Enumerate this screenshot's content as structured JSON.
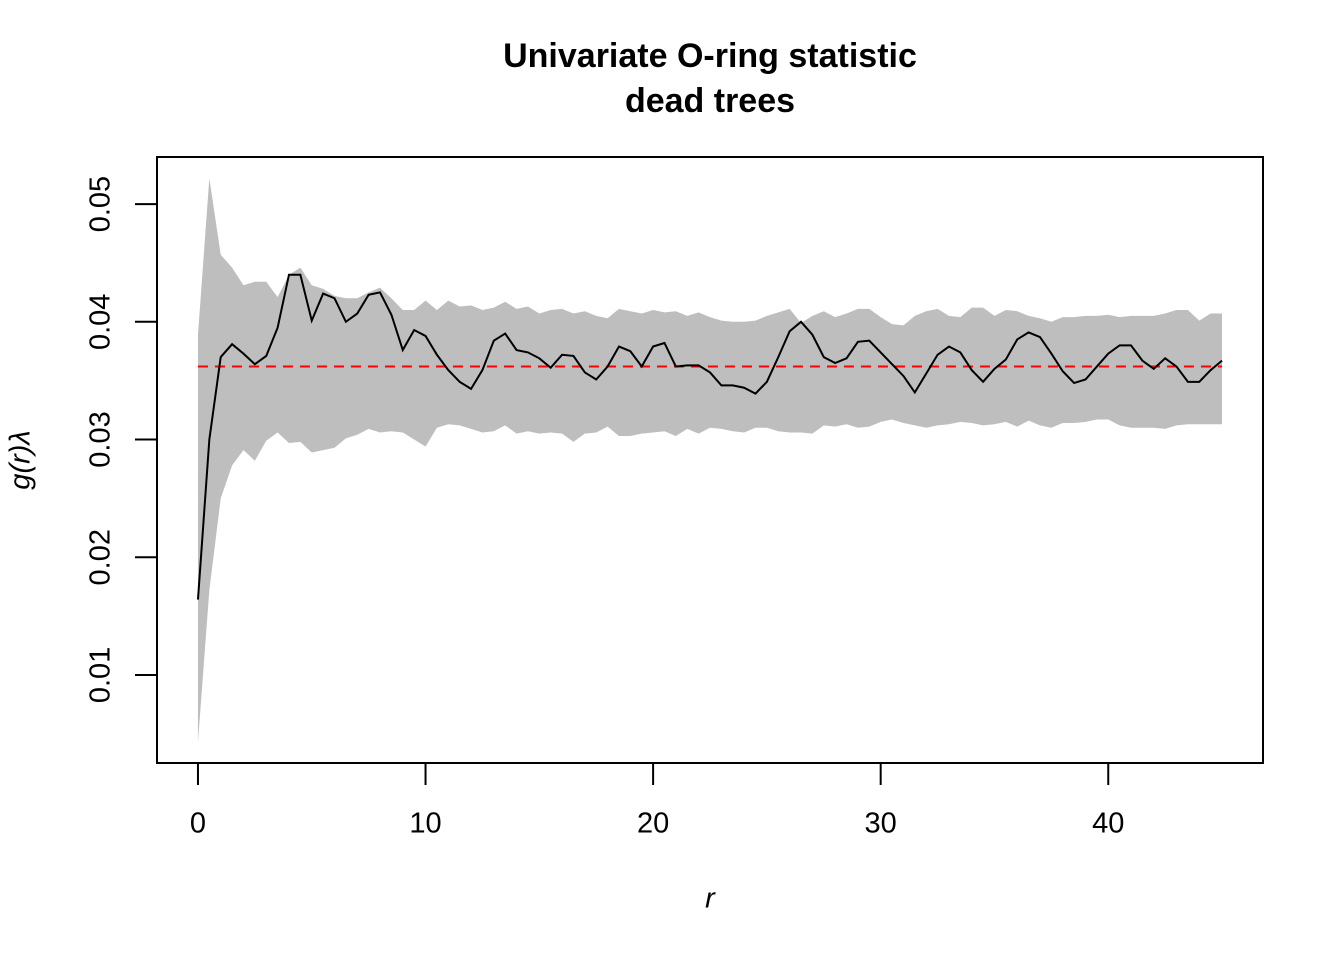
{
  "chart_data": {
    "type": "line",
    "title": "Univariate O-ring statistic",
    "subtitle": "dead trees",
    "x_label": "r",
    "y_label": "g(r)λ",
    "xlim": [
      -1.8,
      46.8
    ],
    "ylim": [
      0.00252,
      0.054
    ],
    "xticks": [
      0,
      10,
      20,
      30,
      40
    ],
    "yticks": [
      0.01,
      0.02,
      0.03,
      0.04,
      0.05
    ],
    "x": [
      0,
      0.5,
      1,
      1.5,
      2,
      2.5,
      3,
      3.5,
      4,
      4.5,
      5,
      5.5,
      6,
      6.5,
      7,
      7.5,
      8,
      8.5,
      9,
      9.5,
      10,
      10.5,
      11,
      11.5,
      12,
      12.5,
      13,
      13.5,
      14,
      14.5,
      15,
      15.5,
      16,
      16.5,
      17,
      17.5,
      18,
      18.5,
      19,
      19.5,
      20,
      20.5,
      21,
      21.5,
      22,
      22.5,
      23,
      23.5,
      24,
      24.5,
      25,
      25.5,
      26,
      26.5,
      27,
      27.5,
      28,
      28.5,
      29,
      29.5,
      30,
      30.5,
      31,
      31.5,
      32,
      32.5,
      33,
      33.5,
      34,
      34.5,
      35,
      35.5,
      36,
      36.5,
      37,
      37.5,
      38,
      38.5,
      39,
      39.5,
      40,
      40.5,
      41,
      41.5,
      42,
      42.5,
      43,
      43.5,
      44,
      44.5,
      45
    ],
    "band": {
      "color": "#bebebe",
      "upper": [
        0.0389,
        0.0522,
        0.0457,
        0.0446,
        0.0431,
        0.0434,
        0.0434,
        0.0421,
        0.044,
        0.0446,
        0.0431,
        0.0428,
        0.0422,
        0.042,
        0.042,
        0.0425,
        0.0429,
        0.042,
        0.041,
        0.041,
        0.0418,
        0.041,
        0.0418,
        0.0413,
        0.0414,
        0.041,
        0.0412,
        0.0417,
        0.0411,
        0.0413,
        0.0407,
        0.041,
        0.0411,
        0.0407,
        0.0409,
        0.0405,
        0.0403,
        0.0411,
        0.0409,
        0.0407,
        0.041,
        0.0408,
        0.0409,
        0.0405,
        0.0408,
        0.0404,
        0.0401,
        0.04,
        0.04,
        0.0401,
        0.0405,
        0.0408,
        0.0411,
        0.0399,
        0.0405,
        0.0409,
        0.0404,
        0.0407,
        0.0411,
        0.0411,
        0.0404,
        0.0398,
        0.0397,
        0.0405,
        0.0409,
        0.0411,
        0.0405,
        0.0404,
        0.0412,
        0.0412,
        0.0405,
        0.041,
        0.0409,
        0.0405,
        0.0403,
        0.04,
        0.0404,
        0.0404,
        0.0405,
        0.0405,
        0.0406,
        0.0404,
        0.0405,
        0.0405,
        0.0405,
        0.0407,
        0.041,
        0.041,
        0.0401,
        0.0407,
        0.0407
      ],
      "lower": [
        0.0043,
        0.0172,
        0.025,
        0.0278,
        0.0291,
        0.0282,
        0.0299,
        0.0306,
        0.0297,
        0.0298,
        0.0289,
        0.0291,
        0.0293,
        0.0301,
        0.0304,
        0.0309,
        0.0306,
        0.0307,
        0.0306,
        0.03,
        0.0294,
        0.031,
        0.0313,
        0.0312,
        0.0309,
        0.0306,
        0.0307,
        0.0312,
        0.0305,
        0.0307,
        0.0305,
        0.0306,
        0.0305,
        0.0298,
        0.0305,
        0.0306,
        0.0311,
        0.0303,
        0.0303,
        0.0305,
        0.0306,
        0.0307,
        0.0303,
        0.0309,
        0.0305,
        0.031,
        0.0309,
        0.0307,
        0.0306,
        0.031,
        0.031,
        0.0307,
        0.0306,
        0.0306,
        0.0305,
        0.0312,
        0.0311,
        0.0313,
        0.031,
        0.0311,
        0.0315,
        0.0317,
        0.0314,
        0.0312,
        0.031,
        0.0312,
        0.0313,
        0.0315,
        0.0314,
        0.0312,
        0.0313,
        0.0315,
        0.0311,
        0.0316,
        0.0312,
        0.031,
        0.0314,
        0.0314,
        0.0315,
        0.0317,
        0.0317,
        0.0312,
        0.031,
        0.031,
        0.031,
        0.0309,
        0.0312,
        0.0313,
        0.0313,
        0.0313,
        0.0313
      ]
    },
    "series": [
      {
        "color": "#000000",
        "values": [
          0.0164,
          0.03,
          0.037,
          0.0381,
          0.0373,
          0.0364,
          0.0371,
          0.0395,
          0.044,
          0.044,
          0.0401,
          0.0424,
          0.042,
          0.04,
          0.0407,
          0.0423,
          0.0425,
          0.0406,
          0.0376,
          0.0393,
          0.0388,
          0.0372,
          0.0359,
          0.0349,
          0.0343,
          0.0359,
          0.0384,
          0.039,
          0.0376,
          0.0374,
          0.0369,
          0.0361,
          0.0372,
          0.0371,
          0.0357,
          0.0351,
          0.0362,
          0.0379,
          0.0375,
          0.0362,
          0.0379,
          0.0382,
          0.0362,
          0.0363,
          0.0363,
          0.0357,
          0.0346,
          0.0346,
          0.0344,
          0.0339,
          0.0349,
          0.037,
          0.0392,
          0.04,
          0.0389,
          0.037,
          0.0365,
          0.0369,
          0.0383,
          0.0384,
          0.0374,
          0.0364,
          0.0354,
          0.034,
          0.0356,
          0.0372,
          0.0379,
          0.0374,
          0.0359,
          0.0349,
          0.036,
          0.0368,
          0.0385,
          0.0391,
          0.0387,
          0.0373,
          0.0358,
          0.0348,
          0.0351,
          0.0362,
          0.0373,
          0.038,
          0.038,
          0.0367,
          0.036,
          0.0369,
          0.0362,
          0.0349,
          0.0349,
          0.0359,
          0.0367
        ]
      }
    ],
    "hline": {
      "value": 0.0362,
      "color": "#ff0000"
    }
  }
}
